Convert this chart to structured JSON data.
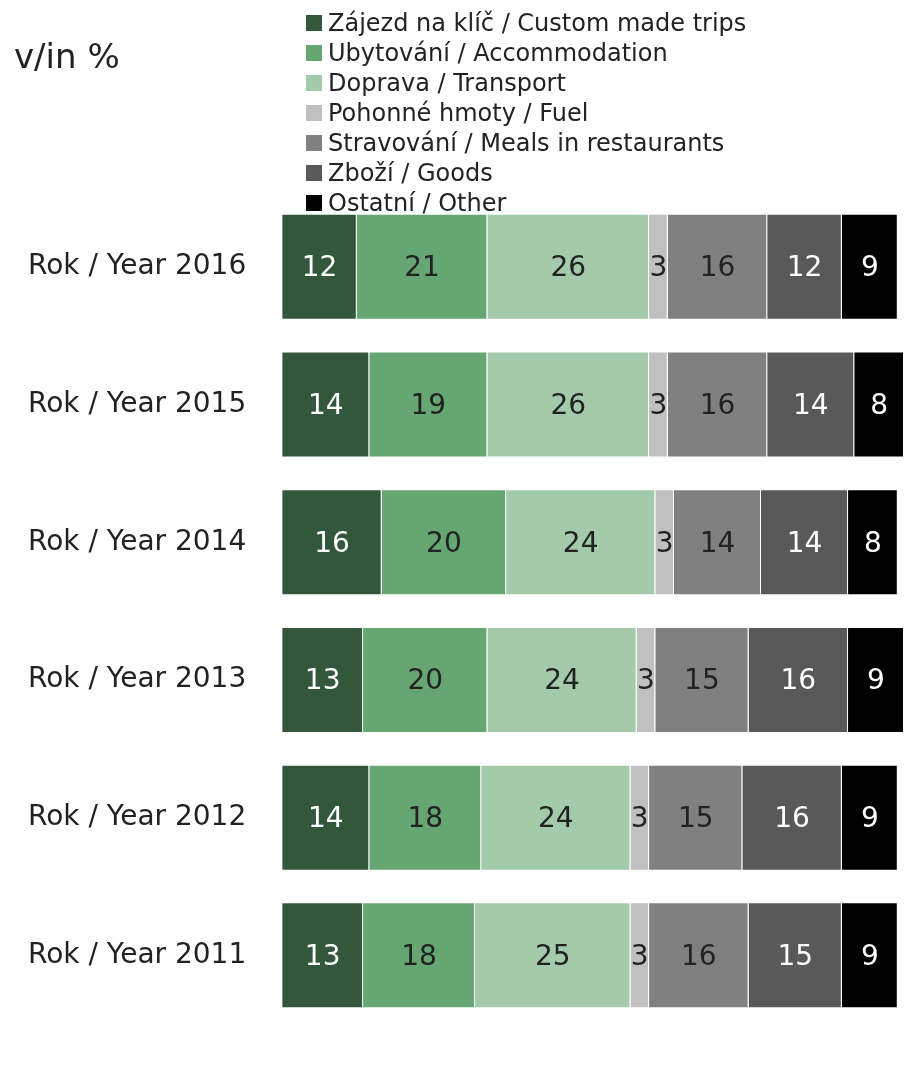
{
  "chart_data": {
    "type": "bar",
    "orientation": "horizontal",
    "stacked": true,
    "title": "v/in %",
    "categories": [
      "Rok / Year 2016",
      "Rok / Year 2015",
      "Rok / Year 2014",
      "Rok / Year 2013",
      "Rok / Year 2012",
      "Rok / Year 2011"
    ],
    "series": [
      {
        "name": "Zájezd na klíč / Custom made trips",
        "color": "#33573b",
        "values": [
          12,
          14,
          16,
          13,
          14,
          13
        ]
      },
      {
        "name": "Ubytování / Accommodation",
        "color": "#66a673",
        "values": [
          21,
          19,
          20,
          20,
          18,
          18
        ]
      },
      {
        "name": "Doprava / Transport",
        "color": "#a3cbab",
        "values": [
          26,
          26,
          24,
          24,
          24,
          25
        ]
      },
      {
        "name": "Pohonné hmoty / Fuel",
        "color": "#c0c0c0",
        "values": [
          3,
          3,
          3,
          3,
          3,
          3
        ]
      },
      {
        "name": "Stravování / Meals in restaurants",
        "color": "#808080",
        "values": [
          16,
          16,
          14,
          15,
          15,
          16
        ]
      },
      {
        "name": "Zboží / Goods",
        "color": "#595959",
        "values": [
          12,
          14,
          14,
          16,
          16,
          15
        ]
      },
      {
        "name": "Ostatní / Other",
        "color": "#000000",
        "values": [
          9,
          8,
          8,
          9,
          9,
          9
        ]
      }
    ],
    "xlim": [
      0,
      100
    ],
    "tick_labels": "y",
    "data_labels": true,
    "legend": "top"
  }
}
